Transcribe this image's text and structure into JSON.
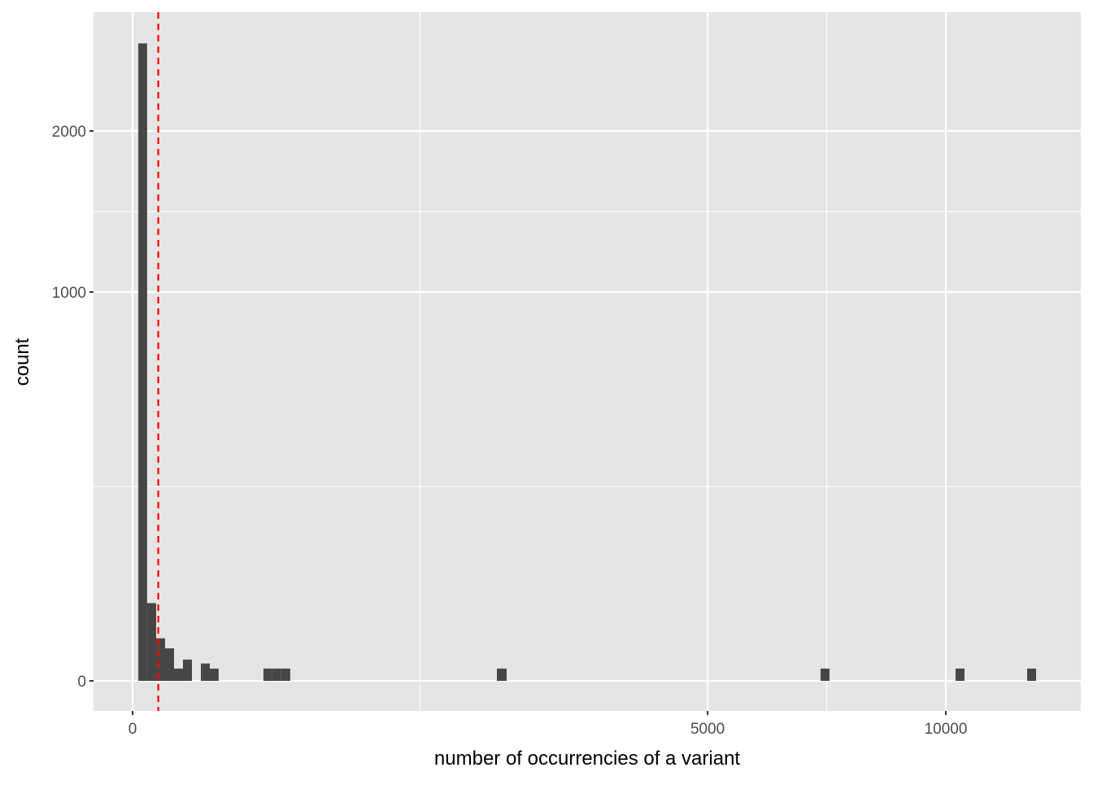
{
  "chart_data": {
    "type": "histogram",
    "title": "",
    "xlabel": "number of occurrencies of a variant",
    "ylabel": "count",
    "x_scale": "sqrt",
    "y_scale": "sqrt",
    "xlim": [
      0,
      13500
    ],
    "ylim": [
      0,
      3000
    ],
    "x_ticks": [
      {
        "value": 0,
        "label": "0"
      },
      {
        "value": 5000,
        "label": "5000"
      },
      {
        "value": 10000,
        "label": "10000"
      }
    ],
    "y_ticks": [
      {
        "value": 0,
        "label": "0"
      },
      {
        "value": 1000,
        "label": "1000"
      },
      {
        "value": 2000,
        "label": "2000"
      }
    ],
    "grid": true,
    "bar_color": "#464646",
    "background": "#e5e5e5",
    "bins": [
      {
        "x0": 0.5,
        "x1": 3.2,
        "count": 2688
      },
      {
        "x0": 3.2,
        "x1": 8.4,
        "count": 40
      },
      {
        "x0": 8.4,
        "x1": 16,
        "count": 12
      },
      {
        "x0": 16,
        "x1": 26,
        "count": 7
      },
      {
        "x0": 26,
        "x1": 38.4,
        "count": 1
      },
      {
        "x0": 38.4,
        "x1": 53.3,
        "count": 3
      },
      {
        "x0": 70.6,
        "x1": 90.3,
        "count": 2
      },
      {
        "x0": 90.3,
        "x1": 112,
        "count": 1
      },
      {
        "x0": 259,
        "x1": 295,
        "count": 1
      },
      {
        "x0": 295,
        "x1": 334,
        "count": 1
      },
      {
        "x0": 334,
        "x1": 376,
        "count": 1
      },
      {
        "x0": 2007,
        "x1": 2116,
        "count": 1
      },
      {
        "x0": 7157,
        "x1": 7344,
        "count": 1
      },
      {
        "x0": 10241,
        "x1": 10465,
        "count": 1
      },
      {
        "x0": 12100,
        "x1": 12343,
        "count": 1
      }
    ],
    "vline": {
      "x": 10,
      "color": "#ff0000",
      "linetype": "dashed"
    }
  }
}
